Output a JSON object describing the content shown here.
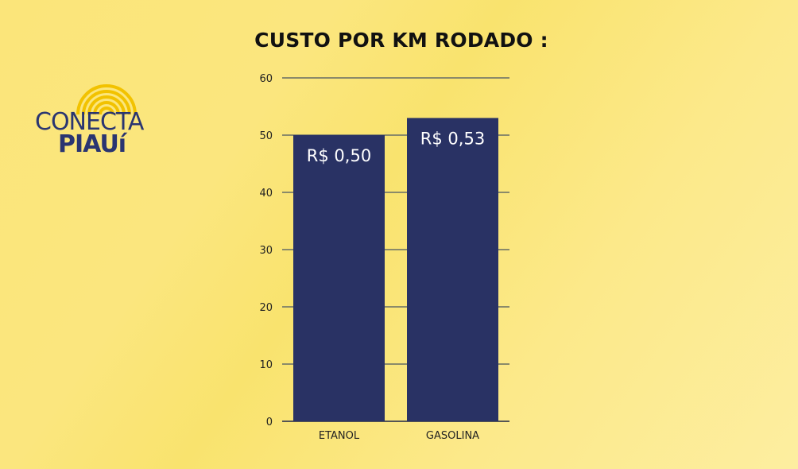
{
  "logo": {
    "word1": "CONECTA",
    "word2": "PIAUí",
    "arc_color": "#f2c200",
    "text_color": "#2a3571"
  },
  "chart_data": {
    "type": "bar",
    "title": "CUSTO POR KM RODADO :",
    "categories": [
      "ETANOL",
      "GASOLINA"
    ],
    "values": [
      50,
      53
    ],
    "data_labels": [
      "R$ 0,50",
      "R$ 0,53"
    ],
    "ylim": [
      0,
      60
    ],
    "yticks": [
      "0",
      "10",
      "20",
      "30",
      "40",
      "50",
      "60"
    ],
    "grid": true,
    "bar_color": "#293264",
    "grid_color": "#8a8a6a"
  }
}
